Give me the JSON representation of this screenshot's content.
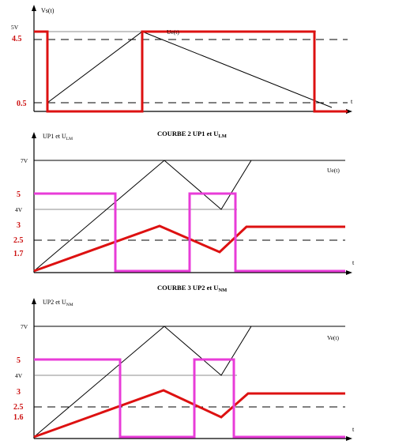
{
  "panel1": {
    "ylabel": "Vs(t)",
    "curve_label": "Ue(t)",
    "x_end_label": "t",
    "tick_5v": "5V",
    "tick_45": "4.5",
    "tick_05": "0.5"
  },
  "panel2": {
    "title_main": "COURBE 2 UP1 et U",
    "title_sub": "LM",
    "ylabel_main": "UP1 et U",
    "ylabel_sub": "LM",
    "curve_label": "Ue(t)",
    "x_end_label": "t",
    "tick_7v": "7V",
    "tick_5": "5",
    "tick_4v": "4V",
    "tick_3": "3",
    "tick_25": "2.5",
    "tick_17": "1.7"
  },
  "panel3": {
    "title_main": "COURBE 3 UP2 et U",
    "title_sub": "NM",
    "ylabel_main": "UP2 et U",
    "ylabel_sub": "NM",
    "curve_label": "Ve(t)",
    "x_end_label": "t",
    "tick_7v": "7V",
    "tick_5": "5",
    "tick_4v": "4V",
    "tick_3": "3",
    "tick_25": "2.5",
    "tick_16": "1.6"
  },
  "colors": {
    "square_red": "#dd1111",
    "square_magenta": "#e83cd8",
    "reference": "#000000"
  }
}
